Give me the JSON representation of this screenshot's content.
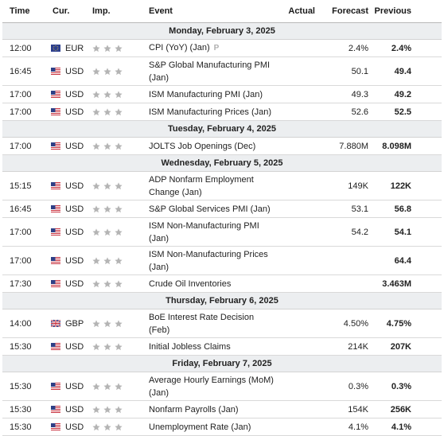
{
  "header": {
    "time": "Time",
    "currency": "Cur.",
    "importance": "Imp.",
    "event": "Event",
    "actual": "Actual",
    "forecast": "Forecast",
    "previous": "Previous"
  },
  "colors": {
    "day_band": "#eceef0",
    "star_inactive": "#b4b4b4",
    "text": "#1f1f1f"
  },
  "days": [
    {
      "label": "Monday, February 3, 2025",
      "events": [
        {
          "time": "12:00",
          "flag": "eu-flag-icon",
          "currency": "EUR",
          "importance": 1,
          "event": [
            "CPI (YoY) (Jan)"
          ],
          "preliminary": "P",
          "actual": "",
          "forecast": "2.4%",
          "previous": "2.4%"
        },
        {
          "time": "16:45",
          "flag": "us-flag-icon",
          "currency": "USD",
          "importance": 1,
          "event": [
            "S&P Global Manufacturing PMI",
            "(Jan)"
          ],
          "actual": "",
          "forecast": "50.1",
          "previous": "49.4"
        },
        {
          "time": "17:00",
          "flag": "us-flag-icon",
          "currency": "USD",
          "importance": 1,
          "event": [
            "ISM Manufacturing PMI (Jan)"
          ],
          "actual": "",
          "forecast": "49.3",
          "previous": "49.2"
        },
        {
          "time": "17:00",
          "flag": "us-flag-icon",
          "currency": "USD",
          "importance": 1,
          "event": [
            "ISM Manufacturing Prices (Jan)"
          ],
          "actual": "",
          "forecast": "52.6",
          "previous": "52.5"
        }
      ]
    },
    {
      "label": "Tuesday, February 4, 2025",
      "events": [
        {
          "time": "17:00",
          "flag": "us-flag-icon",
          "currency": "USD",
          "importance": 1,
          "event": [
            "JOLTS Job Openings (Dec)"
          ],
          "actual": "",
          "forecast": "7.880M",
          "previous": "8.098M"
        }
      ]
    },
    {
      "label": "Wednesday, February 5, 2025",
      "events": [
        {
          "time": "15:15",
          "flag": "us-flag-icon",
          "currency": "USD",
          "importance": 1,
          "event": [
            "ADP Nonfarm Employment",
            "Change (Jan)"
          ],
          "actual": "",
          "forecast": "149K",
          "previous": "122K"
        },
        {
          "time": "16:45",
          "flag": "us-flag-icon",
          "currency": "USD",
          "importance": 1,
          "event": [
            "S&P Global Services PMI (Jan)"
          ],
          "actual": "",
          "forecast": "53.1",
          "previous": "56.8"
        },
        {
          "time": "17:00",
          "flag": "us-flag-icon",
          "currency": "USD",
          "importance": 1,
          "event": [
            "ISM Non-Manufacturing PMI",
            "(Jan)"
          ],
          "actual": "",
          "forecast": "54.2",
          "previous": "54.1"
        },
        {
          "time": "17:00",
          "flag": "us-flag-icon",
          "currency": "USD",
          "importance": 1,
          "event": [
            "ISM Non-Manufacturing Prices",
            "(Jan)"
          ],
          "actual": "",
          "forecast": "",
          "previous": "64.4"
        },
        {
          "time": "17:30",
          "flag": "us-flag-icon",
          "currency": "USD",
          "importance": 1,
          "event": [
            "Crude Oil Inventories"
          ],
          "actual": "",
          "forecast": "",
          "previous": "3.463M"
        }
      ]
    },
    {
      "label": "Thursday, February 6, 2025",
      "events": [
        {
          "time": "14:00",
          "flag": "uk-flag-icon",
          "currency": "GBP",
          "importance": 1,
          "event": [
            "BoE Interest Rate Decision",
            "(Feb)"
          ],
          "actual": "",
          "forecast": "4.50%",
          "previous": "4.75%"
        },
        {
          "time": "15:30",
          "flag": "us-flag-icon",
          "currency": "USD",
          "importance": 1,
          "event": [
            "Initial Jobless Claims"
          ],
          "actual": "",
          "forecast": "214K",
          "previous": "207K"
        }
      ]
    },
    {
      "label": "Friday, February 7, 2025",
      "events": [
        {
          "time": "15:30",
          "flag": "us-flag-icon",
          "currency": "USD",
          "importance": 1,
          "event": [
            "Average Hourly Earnings (MoM)",
            "(Jan)"
          ],
          "actual": "",
          "forecast": "0.3%",
          "previous": "0.3%"
        },
        {
          "time": "15:30",
          "flag": "us-flag-icon",
          "currency": "USD",
          "importance": 1,
          "event": [
            "Nonfarm Payrolls (Jan)"
          ],
          "actual": "",
          "forecast": "154K",
          "previous": "256K"
        },
        {
          "time": "15:30",
          "flag": "us-flag-icon",
          "currency": "USD",
          "importance": 1,
          "event": [
            "Unemployment Rate (Jan)"
          ],
          "actual": "",
          "forecast": "4.1%",
          "previous": "4.1%"
        }
      ]
    }
  ]
}
